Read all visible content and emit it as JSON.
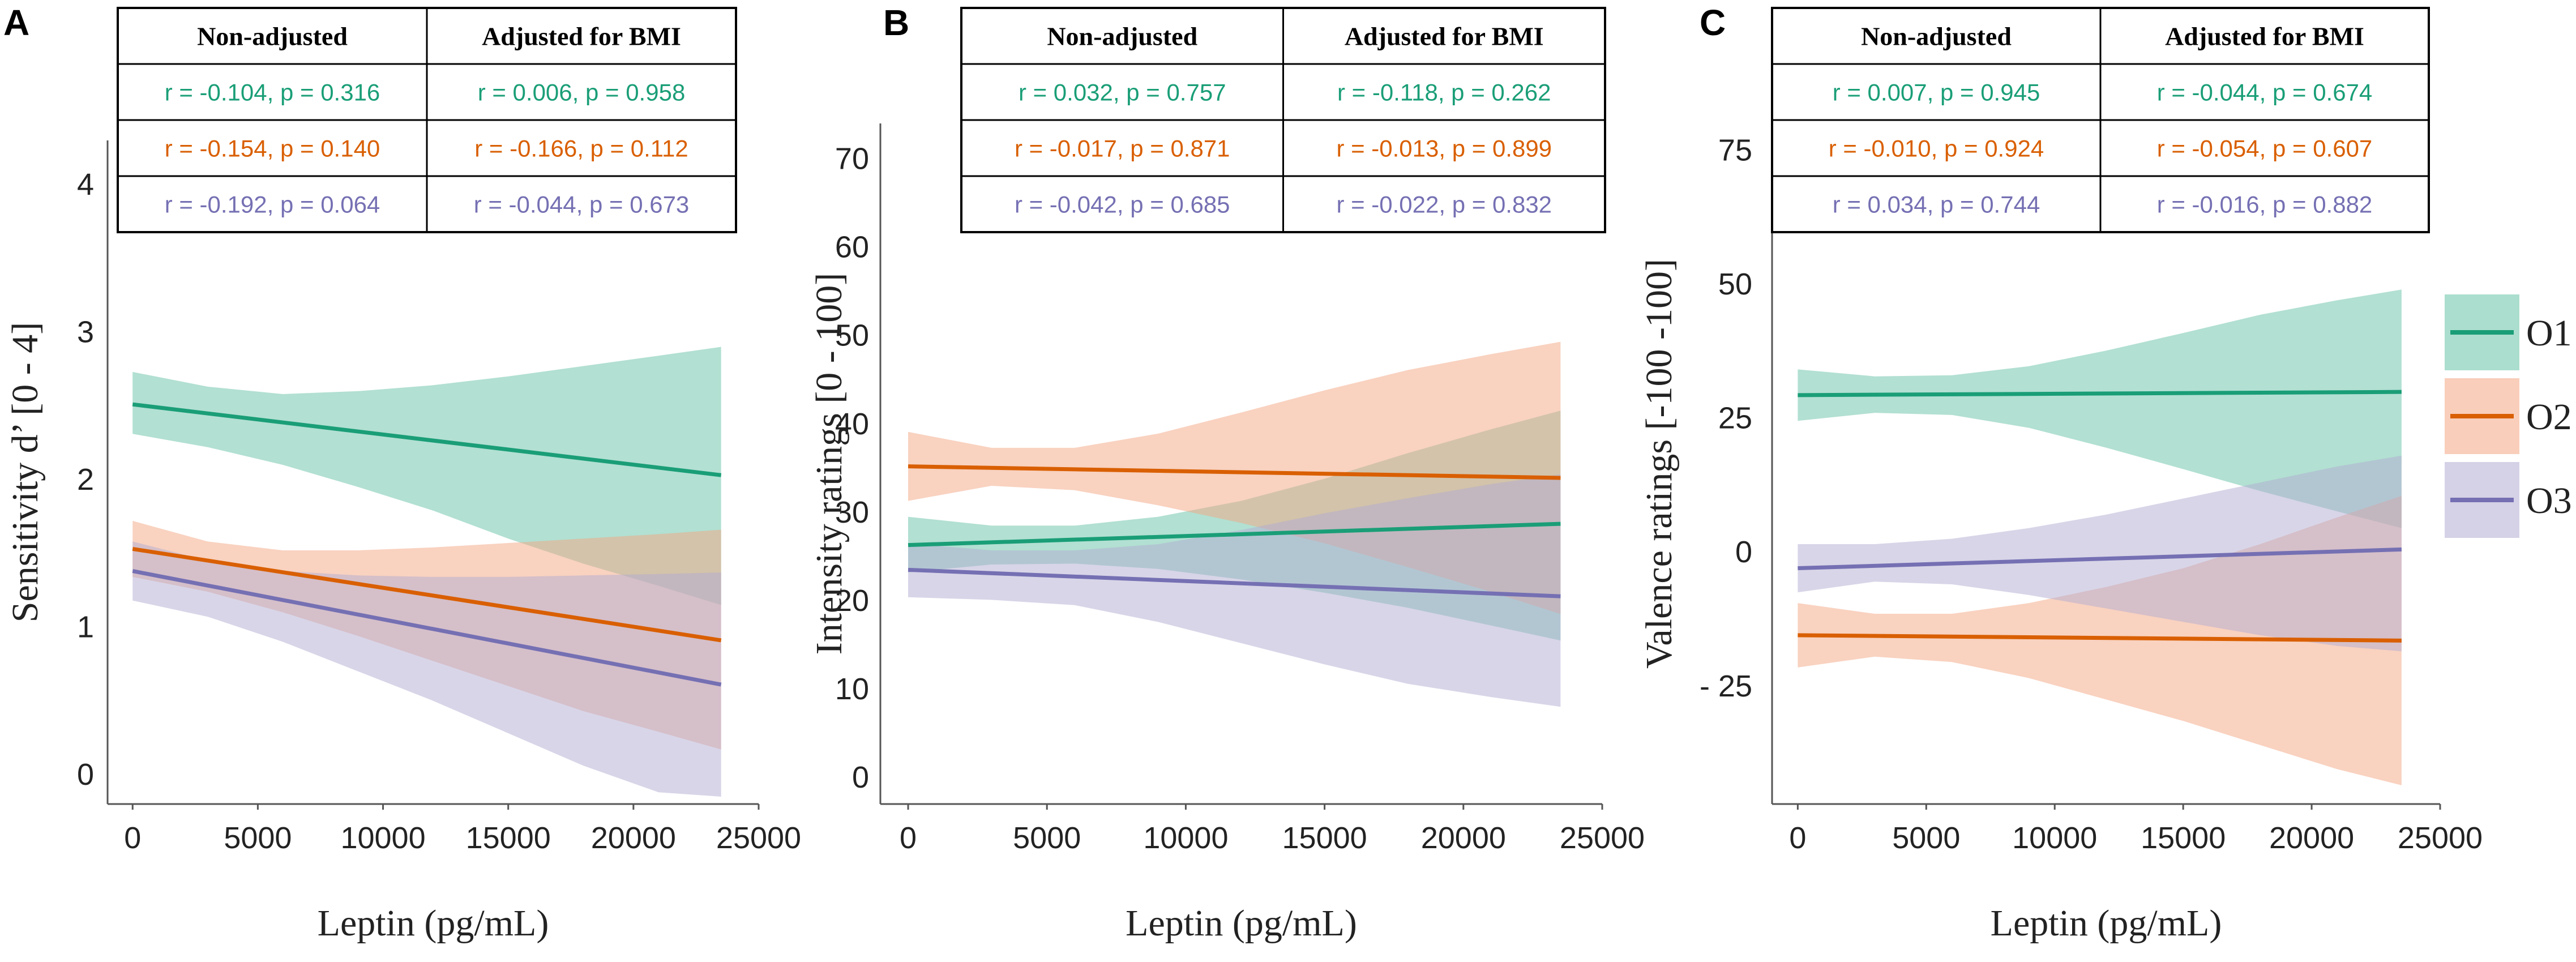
{
  "colors": {
    "O1": "#1a9e77",
    "O2": "#d95f02",
    "O3": "#7570b3",
    "O1_fill": "#66c2a5",
    "O2_fill": "#f4a582",
    "O3_fill": "#b2abd2",
    "axis": "#555555",
    "text": "#222222"
  },
  "legend": {
    "items": [
      {
        "key": "O1",
        "label": "O1"
      },
      {
        "key": "O2",
        "label": "O2"
      },
      {
        "key": "O3",
        "label": "O3"
      }
    ]
  },
  "chart_data": [
    {
      "type": "line",
      "panel_letter": "A",
      "title": "",
      "xlabel": "Leptin (pg/mL)",
      "ylabel": "Sensitivity d’ [0 - 4]",
      "xlim": [
        -1000,
        25000
      ],
      "ylim": [
        -0.2,
        4.3
      ],
      "xticks": [
        0,
        5000,
        10000,
        15000,
        20000,
        25000
      ],
      "xtick_labels": [
        "0",
        "5000",
        "10000",
        "15000",
        "20000",
        "25000"
      ],
      "yticks": [
        0,
        1,
        2,
        3,
        4
      ],
      "ytick_labels": [
        "0",
        "1",
        "2",
        "3",
        "4"
      ],
      "table": {
        "headers": [
          "Non-adjusted",
          "Adjusted for BMI"
        ],
        "rows": [
          {
            "key": "O1",
            "cells": [
              "r = -0.104, p = 0.316",
              "r = 0.006, p = 0.958"
            ]
          },
          {
            "key": "O2",
            "cells": [
              "r = -0.154, p = 0.140",
              "r = -0.166, p = 0.112"
            ]
          },
          {
            "key": "O3",
            "cells": [
              "r = -0.192, p = 0.064",
              "r = -0.044, p = 0.673"
            ]
          }
        ]
      },
      "series": [
        {
          "name": "O1",
          "x": [
            0,
            23500
          ],
          "y": [
            2.51,
            2.03
          ],
          "band_x": [
            0,
            3000,
            6000,
            9000,
            12000,
            15000,
            18000,
            21000,
            23500
          ],
          "band_upper": [
            2.73,
            2.63,
            2.58,
            2.6,
            2.64,
            2.7,
            2.77,
            2.84,
            2.9
          ],
          "band_lower": [
            2.31,
            2.22,
            2.1,
            1.95,
            1.79,
            1.6,
            1.43,
            1.28,
            1.15
          ]
        },
        {
          "name": "O2",
          "x": [
            0,
            23500
          ],
          "y": [
            1.53,
            0.91
          ],
          "band_x": [
            0,
            3000,
            6000,
            9000,
            12000,
            15000,
            18000,
            21000,
            23500
          ],
          "band_upper": [
            1.72,
            1.58,
            1.52,
            1.52,
            1.54,
            1.57,
            1.6,
            1.63,
            1.66
          ],
          "band_lower": [
            1.34,
            1.24,
            1.1,
            0.94,
            0.77,
            0.6,
            0.43,
            0.29,
            0.17
          ]
        },
        {
          "name": "O3",
          "x": [
            0,
            23500
          ],
          "y": [
            1.38,
            0.61
          ],
          "band_x": [
            0,
            3000,
            6000,
            9000,
            12000,
            15000,
            18000,
            21000,
            23500
          ],
          "band_upper": [
            1.58,
            1.45,
            1.38,
            1.35,
            1.34,
            1.34,
            1.35,
            1.36,
            1.37
          ],
          "band_lower": [
            1.18,
            1.07,
            0.9,
            0.7,
            0.5,
            0.28,
            0.06,
            -0.12,
            -0.15
          ]
        }
      ]
    },
    {
      "type": "line",
      "panel_letter": "B",
      "title": "",
      "xlabel": "Leptin (pg/mL)",
      "ylabel": "Intensity ratings [0 - 100]",
      "xlim": [
        -1000,
        25000
      ],
      "ylim": [
        -3,
        74
      ],
      "xticks": [
        0,
        5000,
        10000,
        15000,
        20000,
        25000
      ],
      "xtick_labels": [
        "0",
        "5000",
        "10000",
        "15000",
        "20000",
        "25000"
      ],
      "yticks": [
        0,
        10,
        20,
        30,
        40,
        50,
        60,
        70
      ],
      "ytick_labels": [
        "0",
        "10",
        "20",
        "30",
        "40",
        "50",
        "60",
        "70"
      ],
      "table": {
        "headers": [
          "Non-adjusted",
          "Adjusted for BMI"
        ],
        "rows": [
          {
            "key": "O1",
            "cells": [
              "r = 0.032, p = 0.757",
              "r = -0.118, p = 0.262"
            ]
          },
          {
            "key": "O2",
            "cells": [
              "r = -0.017, p = 0.871",
              "r = -0.013, p = 0.899"
            ]
          },
          {
            "key": "O3",
            "cells": [
              "r = -0.042, p = 0.685",
              "r = -0.022, p = 0.832"
            ]
          }
        ]
      },
      "series": [
        {
          "name": "O1",
          "x": [
            0,
            23500
          ],
          "y": [
            26.3,
            28.7
          ],
          "band_x": [
            0,
            3000,
            6000,
            9000,
            12000,
            15000,
            18000,
            21000,
            23500
          ],
          "band_upper": [
            29.5,
            28.5,
            28.5,
            29.5,
            31.3,
            33.8,
            36.7,
            39.4,
            41.5
          ],
          "band_lower": [
            23.2,
            24.1,
            24.2,
            23.6,
            22.4,
            20.9,
            19.2,
            17.2,
            15.5
          ]
        },
        {
          "name": "O2",
          "x": [
            0,
            23500
          ],
          "y": [
            35.2,
            33.9
          ],
          "band_x": [
            0,
            3000,
            6000,
            9000,
            12000,
            15000,
            18000,
            21000,
            23500
          ],
          "band_upper": [
            39.1,
            37.3,
            37.3,
            38.9,
            41.3,
            43.8,
            46.1,
            47.9,
            49.3
          ],
          "band_lower": [
            31.3,
            33.0,
            32.5,
            30.8,
            28.8,
            26.5,
            23.8,
            21.0,
            18.5
          ]
        },
        {
          "name": "O3",
          "x": [
            0,
            23500
          ],
          "y": [
            23.5,
            20.5
          ],
          "band_x": [
            0,
            3000,
            6000,
            9000,
            12000,
            15000,
            18000,
            21000,
            23500
          ],
          "band_upper": [
            26.5,
            25.7,
            25.7,
            26.4,
            28.0,
            29.9,
            31.6,
            33.2,
            34.3
          ],
          "band_lower": [
            20.4,
            20.1,
            19.5,
            17.6,
            15.2,
            12.8,
            10.6,
            9.1,
            8.0
          ]
        }
      ]
    },
    {
      "type": "line",
      "panel_letter": "C",
      "title": "",
      "xlabel": "Leptin (pg/mL)",
      "ylabel": "Valence ratings [-100 -100]",
      "xlim": [
        -1000,
        25000
      ],
      "ylim": [
        -47,
        80
      ],
      "xticks": [
        0,
        5000,
        10000,
        15000,
        20000,
        25000
      ],
      "xtick_labels": [
        "0",
        "5000",
        "10000",
        "15000",
        "20000",
        "25000"
      ],
      "yticks": [
        -25,
        0,
        25,
        50,
        75
      ],
      "ytick_labels": [
        "- 25",
        "0",
        "25",
        "50",
        "75"
      ],
      "table": {
        "headers": [
          "Non-adjusted",
          "Adjusted for BMI"
        ],
        "rows": [
          {
            "key": "O1",
            "cells": [
              "r = 0.007, p = 0.945",
              "r = -0.044, p = 0.674"
            ]
          },
          {
            "key": "O2",
            "cells": [
              "r = -0.010, p = 0.924",
              "r = -0.054, p = 0.607"
            ]
          },
          {
            "key": "O3",
            "cells": [
              "r = 0.034, p = 0.744",
              "r = -0.016, p = 0.882"
            ]
          }
        ]
      },
      "series": [
        {
          "name": "O1",
          "x": [
            0,
            23500
          ],
          "y": [
            29.3,
            29.9
          ],
          "band_x": [
            0,
            3000,
            6000,
            9000,
            12000,
            15000,
            18000,
            21000,
            23500
          ],
          "band_upper": [
            34.1,
            32.8,
            33.0,
            34.7,
            37.6,
            40.9,
            44.3,
            47.0,
            49.0
          ],
          "band_lower": [
            24.5,
            26.0,
            25.6,
            23.2,
            19.5,
            15.5,
            11.4,
            7.6,
            4.5
          ]
        },
        {
          "name": "O2",
          "x": [
            0,
            23500
          ],
          "y": [
            -15.5,
            -16.5
          ],
          "band_x": [
            0,
            3000,
            6000,
            9000,
            12000,
            15000,
            18000,
            21000,
            23500
          ],
          "band_upper": [
            -9.5,
            -11.5,
            -11.5,
            -9.5,
            -6.5,
            -3.0,
            1.5,
            6.5,
            10.5
          ],
          "band_lower": [
            -21.5,
            -19.5,
            -20.5,
            -23.5,
            -27.5,
            -31.5,
            -36.0,
            -40.5,
            -43.5
          ]
        },
        {
          "name": "O3",
          "x": [
            0,
            23500
          ],
          "y": [
            -3.0,
            0.5
          ],
          "band_x": [
            0,
            3000,
            6000,
            9000,
            12000,
            15000,
            18000,
            21000,
            23500
          ],
          "band_upper": [
            1.5,
            1.5,
            2.5,
            4.5,
            7.0,
            10.0,
            13.0,
            16.0,
            18.0
          ],
          "band_lower": [
            -7.5,
            -5.5,
            -6.0,
            -8.0,
            -10.5,
            -13.0,
            -15.5,
            -17.5,
            -18.5
          ]
        }
      ]
    }
  ]
}
